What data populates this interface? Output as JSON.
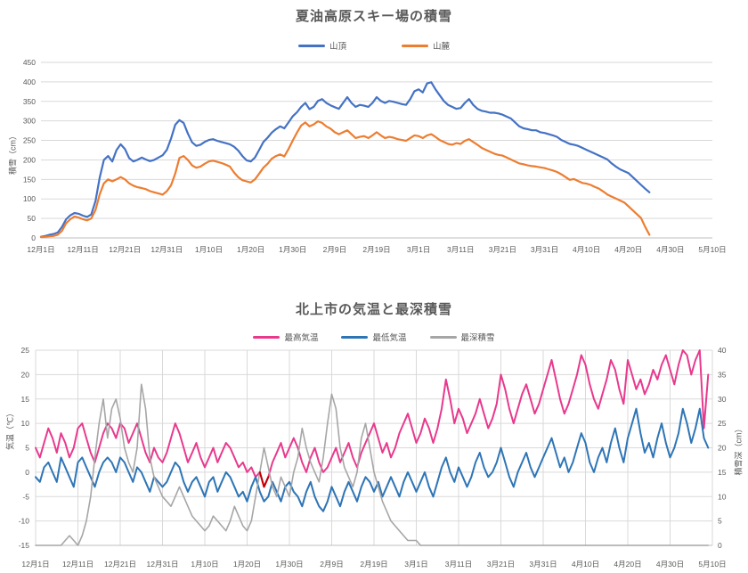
{
  "page": {
    "background": "#ffffff"
  },
  "charts": [
    {
      "title": "夏油高原スキー場の積雪",
      "y_axis_title": "積雪（cm）",
      "legend": [
        {
          "label": "山頂",
          "color": "#4472C4"
        },
        {
          "label": "山麓",
          "color": "#ED7D31"
        }
      ],
      "chart_data": {
        "type": "line",
        "title": "夏油高原スキー場の積雪",
        "ylabel": "積雪（cm）",
        "ylim": [
          0,
          450
        ],
        "y_step": 50,
        "y_tick_labels": [
          "450",
          "400",
          "350",
          "300",
          "250",
          "200",
          "150",
          "100",
          "50",
          "0"
        ],
        "grid": "horizontal",
        "legend_position": "top",
        "x_start": "12月1日",
        "x_tick_interval_days": 10,
        "x_tick_labels": [
          "12月1日",
          "12月11日",
          "12月21日",
          "12月31日",
          "1月10日",
          "1月20日",
          "1月30日",
          "2月9日",
          "2月19日",
          "3月1日",
          "3月11日",
          "3月21日",
          "3月31日",
          "4月10日",
          "4月20日",
          "4月30日",
          "5月10日"
        ],
        "series": [
          {
            "name": "山頂",
            "color": "#4472C4",
            "values": [
              3,
              5,
              8,
              10,
              14,
              28,
              48,
              58,
              64,
              62,
              57,
              54,
              60,
              95,
              155,
              200,
              210,
              196,
              225,
              240,
              228,
              205,
              196,
              200,
              206,
              201,
              197,
              200,
              206,
              212,
              226,
              255,
              290,
              302,
              295,
              268,
              245,
              236,
              239,
              246,
              251,
              253,
              249,
              246,
              243,
              240,
              234,
              224,
              210,
              199,
              196,
              206,
              226,
              246,
              257,
              270,
              279,
              286,
              281,
              296,
              312,
              322,
              336,
              346,
              330,
              336,
              351,
              356,
              346,
              340,
              335,
              331,
              346,
              361,
              346,
              336,
              341,
              339,
              336,
              346,
              361,
              351,
              346,
              351,
              349,
              346,
              343,
              341,
              356,
              376,
              381,
              373,
              396,
              399,
              381,
              366,
              351,
              341,
              336,
              331,
              333,
              346,
              356,
              341,
              331,
              326,
              324,
              321,
              321,
              319,
              316,
              311,
              306,
              296,
              286,
              281,
              279,
              276,
              276,
              271,
              269,
              266,
              263,
              259,
              251,
              246,
              241,
              239,
              236,
              231,
              226,
              221,
              216,
              211,
              206,
              201,
              191,
              183,
              176,
              171,
              166,
              156,
              146,
              136,
              126,
              117
            ]
          },
          {
            "name": "山麓",
            "color": "#ED7D31",
            "values": [
              2,
              3,
              4,
              5,
              8,
              18,
              38,
              48,
              55,
              52,
              48,
              45,
              50,
              72,
              112,
              140,
              150,
              145,
              150,
              156,
              150,
              140,
              134,
              130,
              128,
              125,
              120,
              117,
              114,
              111,
              120,
              135,
              165,
              205,
              210,
              200,
              186,
              180,
              183,
              190,
              196,
              198,
              195,
              192,
              188,
              183,
              168,
              156,
              148,
              145,
              142,
              150,
              165,
              180,
              190,
              203,
              210,
              214,
              209,
              228,
              250,
              270,
              288,
              296,
              286,
              291,
              299,
              295,
              286,
              280,
              271,
              266,
              271,
              276,
              266,
              256,
              259,
              261,
              256,
              263,
              271,
              263,
              256,
              259,
              257,
              253,
              251,
              249,
              256,
              263,
              261,
              256,
              263,
              266,
              259,
              251,
              246,
              241,
              239,
              243,
              241,
              249,
              253,
              246,
              239,
              231,
              226,
              221,
              216,
              213,
              211,
              206,
              201,
              196,
              191,
              189,
              186,
              184,
              183,
              181,
              179,
              176,
              173,
              169,
              163,
              156,
              149,
              151,
              146,
              141,
              139,
              136,
              131,
              126,
              119,
              111,
              106,
              101,
              96,
              91,
              81,
              71,
              61,
              51,
              28,
              8
            ]
          }
        ]
      }
    },
    {
      "title": "北上市の気温と最深積雪",
      "y_axis_title_left": "気温（℃）",
      "y_axis_title_right": "積雪深（cm）",
      "legend": [
        {
          "label": "最高気温",
          "color": "#E8398D"
        },
        {
          "label": "最低気温",
          "color": "#2E75B6"
        },
        {
          "label": "最深積雪",
          "color": "#A6A6A6"
        }
      ],
      "chart_data": {
        "type": "line",
        "title": "北上市の気温と最深積雪",
        "ylabel_left": "気温（℃）",
        "ylabel_right": "積雪深（cm）",
        "ylim_left": [
          -15,
          25
        ],
        "ylim_right": [
          0,
          40
        ],
        "y_step": 5,
        "y_tick_labels_left": [
          "25",
          "20",
          "15",
          "10",
          "5",
          "0",
          "-5",
          "-10",
          "-15"
        ],
        "y_tick_labels_right": [
          "40",
          "35",
          "30",
          "25",
          "20",
          "15",
          "10",
          "5",
          "0"
        ],
        "grid": "both",
        "legend_position": "top",
        "x_start": "12月1日",
        "x_tick_interval_days": 10,
        "x_tick_labels": [
          "12月1日",
          "12月11日",
          "12月21日",
          "12月31日",
          "1月10日",
          "1月20日",
          "1月30日",
          "2月9日",
          "2月19日",
          "3月1日",
          "3月11日",
          "3月21日",
          "3月31日",
          "4月10日",
          "4月20日",
          "4月30日",
          "5月10日"
        ],
        "series": [
          {
            "name": "最高気温",
            "color": "#E8398D",
            "axis": "left",
            "values": [
              5,
              3,
              6,
              9,
              7,
              4,
              8,
              6,
              3,
              5,
              9,
              10,
              7,
              4,
              2,
              5,
              8,
              10,
              9,
              7,
              10,
              9,
              6,
              8,
              10,
              7,
              4,
              2,
              5,
              3,
              2,
              4,
              7,
              10,
              8,
              5,
              2,
              4,
              6,
              3,
              1,
              3,
              5,
              2,
              4,
              6,
              5,
              3,
              1,
              2,
              0,
              1,
              -1,
              0,
              -3,
              -1,
              2,
              4,
              6,
              3,
              5,
              7,
              5,
              2,
              0,
              3,
              5,
              2,
              0,
              1,
              3,
              5,
              2,
              4,
              6,
              3,
              1,
              4,
              6,
              8,
              10,
              7,
              4,
              6,
              3,
              5,
              8,
              10,
              12,
              9,
              6,
              8,
              11,
              9,
              6,
              9,
              13,
              19,
              15,
              10,
              13,
              11,
              8,
              10,
              12,
              15,
              12,
              9,
              11,
              14,
              20,
              17,
              13,
              10,
              13,
              16,
              18,
              15,
              12,
              14,
              17,
              20,
              23,
              19,
              15,
              12,
              14,
              17,
              20,
              24,
              22,
              18,
              15,
              13,
              16,
              19,
              23,
              21,
              17,
              14,
              23,
              20,
              17,
              19,
              16,
              18,
              21,
              19,
              22,
              24,
              21,
              18,
              22,
              25,
              24,
              20,
              23,
              25,
              9,
              20
            ]
          },
          {
            "name": "最低気温",
            "color": "#2E75B6",
            "axis": "left",
            "values": [
              -1,
              -2,
              1,
              2,
              0,
              -2,
              3,
              1,
              -1,
              -3,
              2,
              3,
              1,
              -1,
              -3,
              0,
              2,
              3,
              2,
              0,
              3,
              2,
              0,
              -2,
              1,
              0,
              -2,
              -4,
              -1,
              -2,
              -3,
              -2,
              0,
              2,
              1,
              -2,
              -4,
              -2,
              -1,
              -3,
              -5,
              -2,
              -1,
              -4,
              -2,
              0,
              -1,
              -3,
              -5,
              -4,
              -6,
              -3,
              -1,
              -4,
              -6,
              -5,
              -2,
              -4,
              -6,
              -3,
              -2,
              -4,
              -5,
              -7,
              -4,
              -2,
              -5,
              -7,
              -8,
              -6,
              -3,
              -5,
              -7,
              -4,
              -2,
              -4,
              -6,
              -3,
              -1,
              -2,
              -4,
              -2,
              -5,
              -3,
              -1,
              -3,
              -5,
              -2,
              0,
              -2,
              -4,
              -2,
              0,
              -3,
              -5,
              -2,
              1,
              3,
              0,
              -2,
              1,
              -1,
              -3,
              -1,
              2,
              4,
              1,
              -1,
              0,
              2,
              5,
              2,
              -1,
              -3,
              0,
              2,
              4,
              1,
              -1,
              1,
              3,
              5,
              7,
              4,
              1,
              3,
              0,
              2,
              5,
              8,
              6,
              2,
              0,
              3,
              5,
              2,
              6,
              9,
              5,
              2,
              7,
              10,
              13,
              8,
              4,
              6,
              3,
              7,
              10,
              6,
              3,
              5,
              8,
              13,
              10,
              6,
              9,
              13,
              7,
              5
            ]
          },
          {
            "name": "最深積雪",
            "color": "#A6A6A6",
            "axis": "right",
            "values": [
              0,
              0,
              0,
              0,
              0,
              0,
              0,
              1,
              2,
              1,
              0,
              2,
              5,
              10,
              18,
              25,
              30,
              22,
              28,
              30,
              26,
              20,
              17,
              15,
              20,
              33,
              28,
              18,
              14,
              12,
              10,
              9,
              8,
              10,
              12,
              10,
              8,
              6,
              5,
              4,
              3,
              4,
              6,
              5,
              4,
              3,
              5,
              8,
              6,
              4,
              3,
              5,
              10,
              15,
              20,
              16,
              12,
              10,
              14,
              12,
              10,
              15,
              18,
              24,
              20,
              17,
              15,
              13,
              18,
              25,
              31,
              28,
              20,
              16,
              14,
              12,
              15,
              22,
              25,
              20,
              15,
              12,
              9,
              7,
              5,
              4,
              3,
              2,
              1,
              1,
              1,
              0,
              0,
              0,
              0,
              0,
              0,
              0,
              0,
              0,
              0,
              0,
              0,
              0,
              0,
              0,
              0,
              0,
              0,
              0,
              0,
              0,
              0,
              0,
              0,
              0,
              0,
              0,
              0,
              0,
              0,
              0,
              0,
              0,
              0,
              0,
              0,
              0,
              0,
              0,
              0,
              0,
              0,
              0,
              0,
              0,
              0,
              0,
              0,
              0,
              0,
              0,
              0,
              0,
              0,
              0,
              0,
              0,
              0,
              0,
              0,
              0,
              0,
              0,
              0,
              0,
              0,
              0,
              0,
              0
            ]
          }
        ],
        "highlight_segment": {
          "series": "最高気温",
          "color": "#C00000",
          "start_index": 53,
          "end_index": 55
        }
      }
    }
  ]
}
